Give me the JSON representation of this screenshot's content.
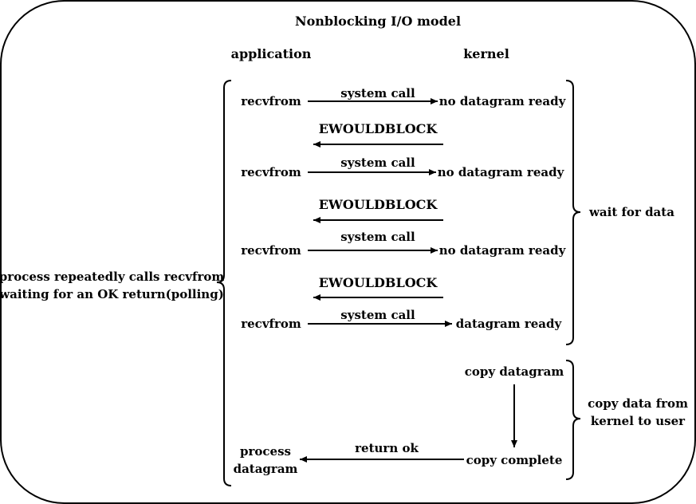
{
  "title": "Nonblocking I/O model",
  "columns": {
    "application": "application",
    "kernel": "kernel"
  },
  "left_label": [
    "process repeatedly calls recvfrom",
    "waiting for an OK return(polling)"
  ],
  "right_groups": {
    "wait": [
      "wait for data"
    ],
    "copy": [
      "copy data from",
      "kernel to user"
    ]
  },
  "steps": [
    {
      "app": "recvfrom",
      "call": "system call",
      "kernel": "no datagram ready",
      "reply": "EWOULDBLOCK"
    },
    {
      "app": "recvfrom",
      "call": "system call",
      "kernel": "no datagram ready",
      "reply": "EWOULDBLOCK"
    },
    {
      "app": "recvfrom",
      "call": "system call",
      "kernel": "no datagram ready",
      "reply": "EWOULDBLOCK"
    },
    {
      "app": "recvfrom",
      "call": "system call",
      "kernel": "datagram ready"
    }
  ],
  "copy_start": "copy datagram",
  "copy_end": "copy complete",
  "return_label": "return ok",
  "final_app": [
    "process",
    "datagram"
  ]
}
